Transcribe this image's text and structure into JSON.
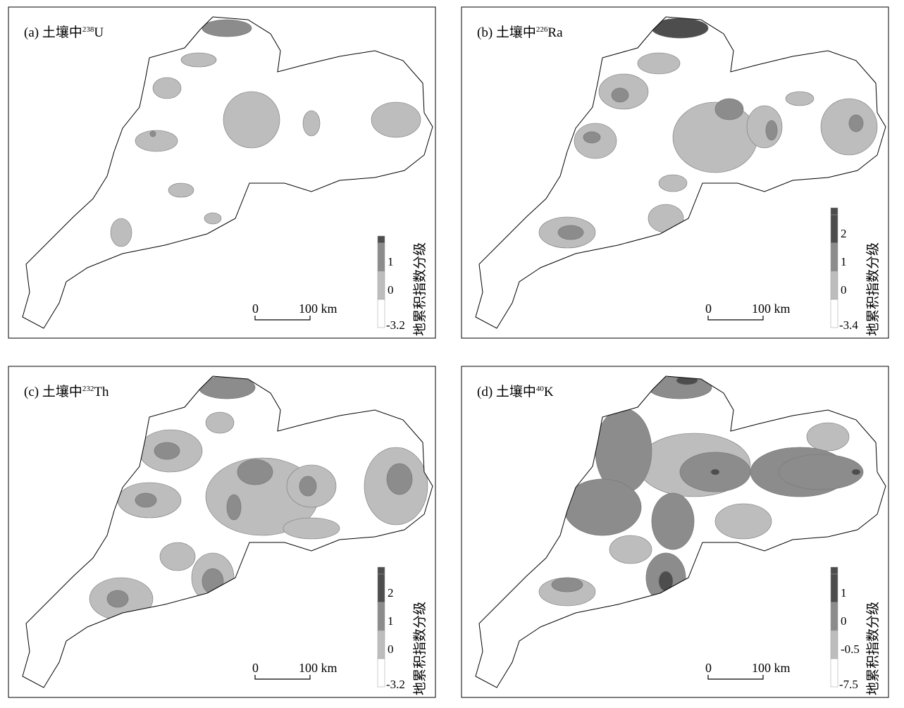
{
  "panels": [
    {
      "label_prefix": "(a) 土壤中",
      "isotope_mass": "238",
      "element": "U",
      "legend": {
        "title": "地累积指数分级",
        "breaks": [
          "1",
          "0",
          "-3.2"
        ]
      },
      "scale": {
        "start": "0",
        "end": "100 km"
      }
    },
    {
      "label_prefix": "(b) 土壤中",
      "isotope_mass": "226",
      "element": "Ra",
      "legend": {
        "title": "地累积指数分级",
        "breaks": [
          "2",
          "1",
          "0",
          "-3.4"
        ]
      },
      "scale": {
        "start": "0",
        "end": "100 km"
      }
    },
    {
      "label_prefix": "(c) 土壤中",
      "isotope_mass": "232",
      "element": "Th",
      "legend": {
        "title": "地累积指数分级",
        "breaks": [
          "2",
          "1",
          "0",
          "-3.2"
        ]
      },
      "scale": {
        "start": "0",
        "end": "100 km"
      }
    },
    {
      "label_prefix": "(d) 土壤中",
      "isotope_mass": "40",
      "element": "K",
      "legend": {
        "title": "地累积指数分级",
        "breaks": [
          "1",
          "0",
          "-0.5",
          "-7.5"
        ]
      },
      "scale": {
        "start": "0",
        "end": "100 km"
      }
    }
  ]
}
